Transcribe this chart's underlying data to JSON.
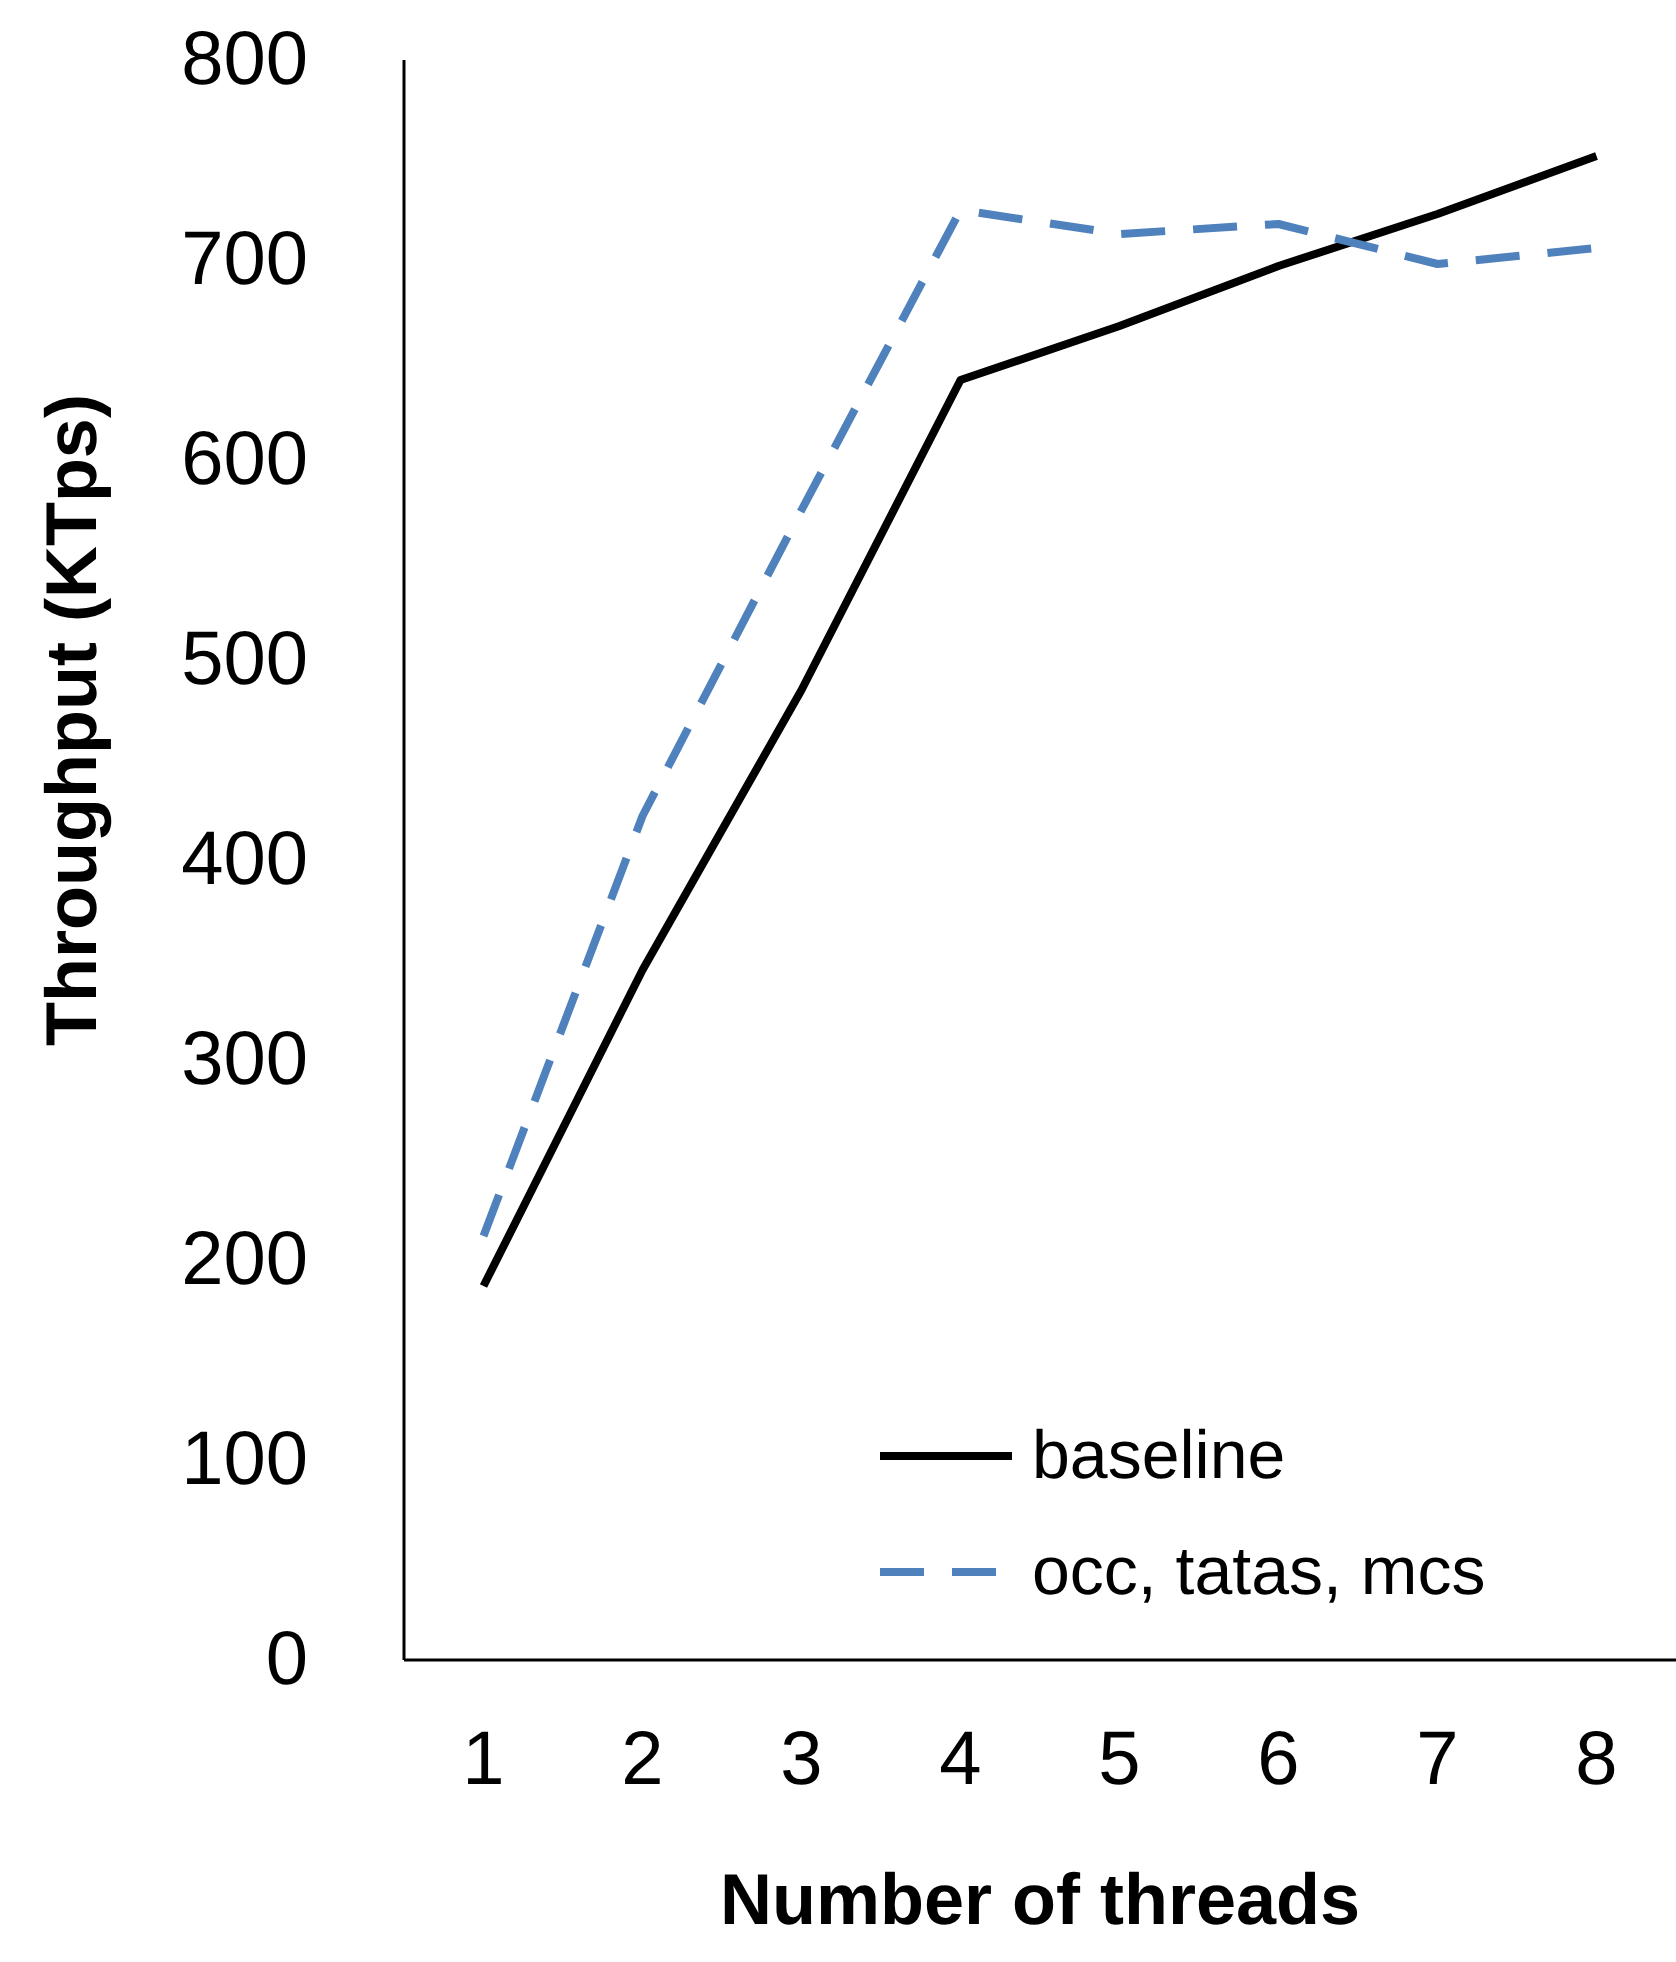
{
  "chart_data": {
    "type": "line",
    "xlabel": "Number of threads",
    "ylabel": "Throughput (KTps)",
    "categories": [
      "1",
      "2",
      "3",
      "4",
      "5",
      "6",
      "7",
      "8"
    ],
    "ylim": [
      0,
      800
    ],
    "yticks": [
      0,
      100,
      200,
      300,
      400,
      500,
      600,
      700,
      800
    ],
    "grid": false,
    "legend": "bottom right",
    "series": [
      {
        "name": "baseline",
        "color": "#000000",
        "line_style": "solid",
        "values": [
          187,
          345,
          485,
          640,
          667,
          697,
          723,
          752
        ]
      },
      {
        "name": "occ, tatas, mcs",
        "color": "#4f81bd",
        "line_style": "dashed",
        "values": [
          212,
          422,
          575,
          725,
          713,
          718,
          698,
          706
        ]
      }
    ]
  }
}
